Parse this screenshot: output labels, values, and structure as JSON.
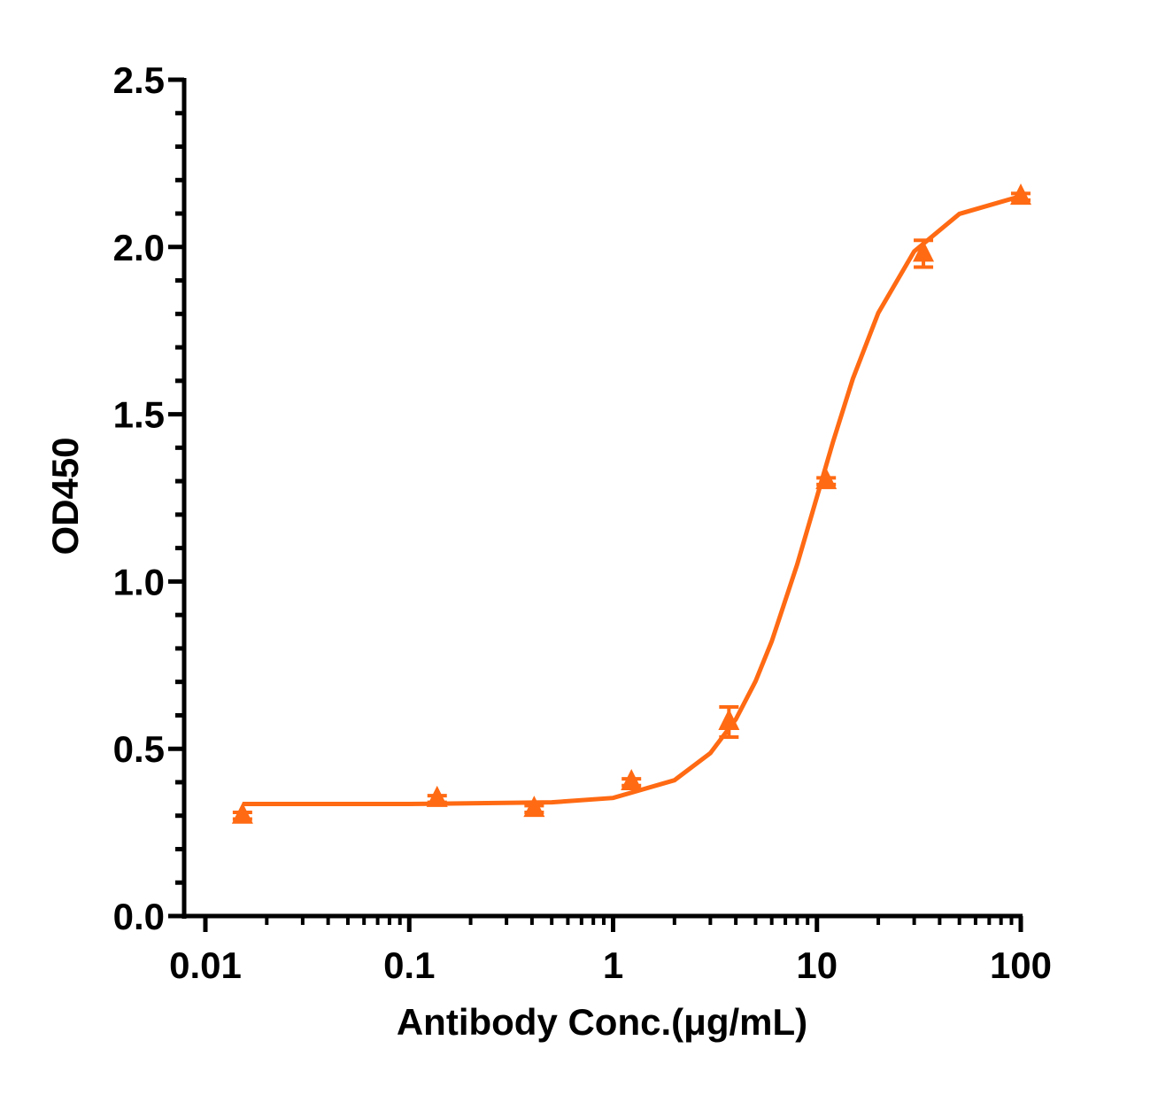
{
  "chart_data": {
    "type": "scatter",
    "xlabel": "Antibody Conc.(μg/mL)",
    "ylabel": "OD450",
    "xscale": "log",
    "xlim": [
      0.008,
      100
    ],
    "ylim": [
      0,
      2.5
    ],
    "xticks": [
      0.01,
      0.1,
      1,
      10,
      100
    ],
    "yticks": [
      {
        "value": 0,
        "label": "0.0"
      },
      0.5,
      {
        "value": 1,
        "label": "1.0"
      },
      1.5,
      {
        "value": 2,
        "label": "2.0"
      },
      2.5
    ],
    "series": [
      {
        "kind": "points",
        "color": "#ff6a13",
        "x": [
          0.0152,
          0.137,
          0.41,
          1.23,
          3.7,
          11.1,
          33.3,
          100
        ],
        "values": [
          0.3,
          0.35,
          0.32,
          0.4,
          0.58,
          1.3,
          1.98,
          2.15
        ],
        "errors": [
          0.01,
          0.01,
          0.01,
          0.01,
          0.045,
          0.01,
          0.04,
          0.01
        ]
      },
      {
        "kind": "curve",
        "color": "#ff6a13",
        "x": [
          0.0152,
          0.1,
          0.5,
          1,
          2,
          3,
          4,
          5,
          6,
          8,
          10,
          12,
          15,
          20,
          30,
          50,
          100
        ],
        "values": [
          0.335,
          0.335,
          0.34,
          0.353,
          0.406,
          0.487,
          0.588,
          0.702,
          0.821,
          1.051,
          1.253,
          1.418,
          1.606,
          1.803,
          1.987,
          2.099,
          2.152
        ]
      }
    ]
  }
}
